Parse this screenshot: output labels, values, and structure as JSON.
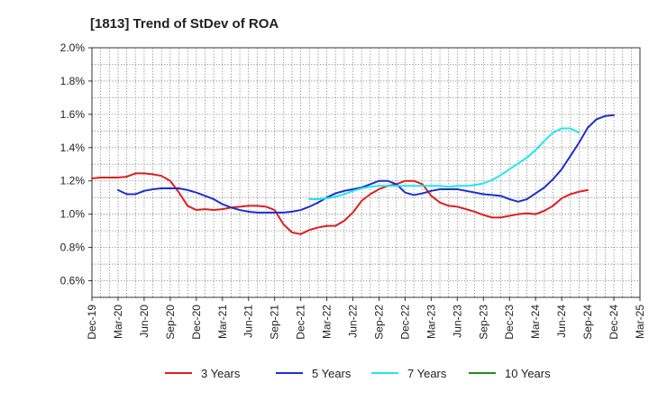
{
  "chart_data": {
    "type": "line",
    "title": "[1813]  Trend of StDev of ROA",
    "xlabel": "",
    "ylabel": "",
    "y_ticks": [
      "0.6%",
      "0.8%",
      "1.0%",
      "1.2%",
      "1.4%",
      "1.6%",
      "1.8%",
      "2.0%"
    ],
    "ylim": [
      0.5,
      2.0
    ],
    "x_ticks": [
      "Dec-19",
      "Mar-20",
      "Jun-20",
      "Sep-20",
      "Dec-20",
      "Mar-21",
      "Jun-21",
      "Sep-21",
      "Dec-21",
      "Mar-22",
      "Jun-22",
      "Sep-22",
      "Dec-22",
      "Mar-23",
      "Jun-23",
      "Sep-23",
      "Dec-23",
      "Mar-24",
      "Jun-24",
      "Sep-24",
      "Dec-24",
      "Mar-25"
    ],
    "grid": true,
    "legend_position": "bottom",
    "series": [
      {
        "name": "3 Years",
        "color": "#dd1f1f",
        "start_index": 0,
        "values": [
          1.215,
          1.22,
          1.22,
          1.22,
          1.225,
          1.245,
          1.245,
          1.24,
          1.23,
          1.2,
          1.13,
          1.05,
          1.025,
          1.03,
          1.025,
          1.03,
          1.04,
          1.045,
          1.05,
          1.05,
          1.045,
          1.025,
          0.94,
          0.89,
          0.88,
          0.905,
          0.92,
          0.93,
          0.93,
          0.96,
          1.01,
          1.08,
          1.12,
          1.15,
          1.17,
          1.18,
          1.2,
          1.2,
          1.18,
          1.11,
          1.07,
          1.05,
          1.045,
          1.03,
          1.015,
          0.995,
          0.98,
          0.98,
          0.99,
          1.0,
          1.005,
          1.0,
          1.02,
          1.05,
          1.095,
          1.12,
          1.135,
          1.145
        ]
      },
      {
        "name": "5 Years",
        "color": "#1c2fcf",
        "start_index": 3,
        "values": [
          1.145,
          1.12,
          1.12,
          1.14,
          1.15,
          1.155,
          1.155,
          1.155,
          1.145,
          1.13,
          1.11,
          1.09,
          1.06,
          1.04,
          1.025,
          1.015,
          1.01,
          1.01,
          1.01,
          1.01,
          1.015,
          1.025,
          1.045,
          1.07,
          1.1,
          1.125,
          1.14,
          1.15,
          1.16,
          1.18,
          1.2,
          1.2,
          1.18,
          1.13,
          1.115,
          1.125,
          1.14,
          1.15,
          1.15,
          1.15,
          1.14,
          1.13,
          1.12,
          1.115,
          1.11,
          1.09,
          1.075,
          1.09,
          1.125,
          1.16,
          1.21,
          1.27,
          1.35,
          1.43,
          1.52,
          1.57,
          1.59,
          1.595
        ]
      },
      {
        "name": "7 Years",
        "color": "#22e6ee",
        "start_index": 25,
        "values": [
          1.09,
          1.09,
          1.095,
          1.105,
          1.12,
          1.14,
          1.155,
          1.165,
          1.17,
          1.17,
          1.17,
          1.17,
          1.17,
          1.17,
          1.17,
          1.17,
          1.165,
          1.17,
          1.17,
          1.175,
          1.185,
          1.205,
          1.235,
          1.27,
          1.305,
          1.34,
          1.385,
          1.44,
          1.49,
          1.515,
          1.515,
          1.49
        ]
      },
      {
        "name": "10 Years",
        "color": "#1e8c1e",
        "start_index": 0,
        "values": []
      }
    ]
  }
}
